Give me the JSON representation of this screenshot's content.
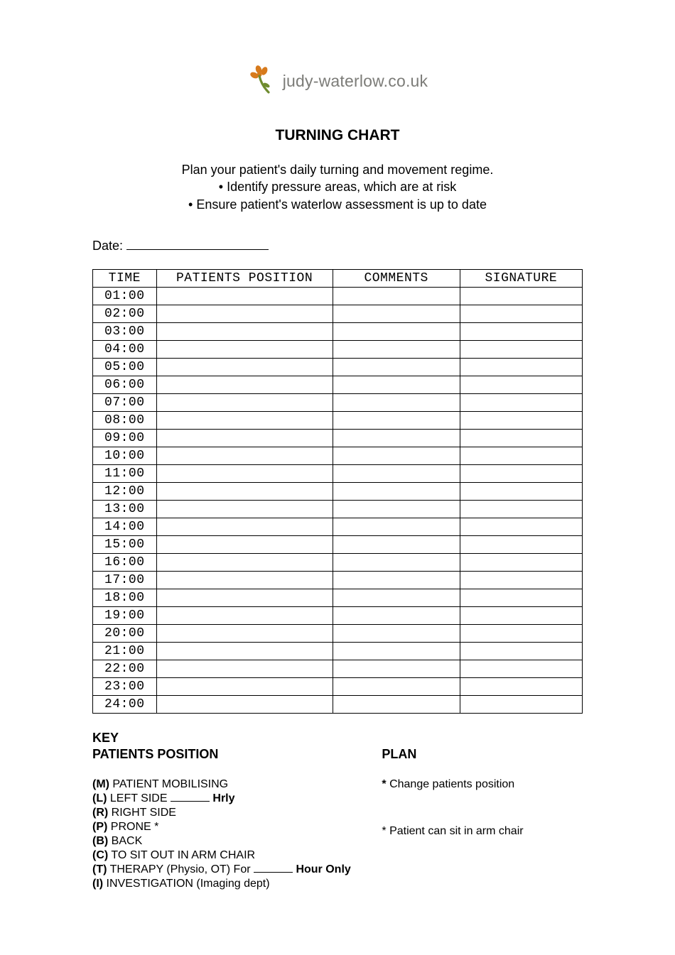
{
  "logo": {
    "text": "judy-waterlow.co.uk",
    "petal_color": "#d77a1c",
    "stem_color": "#6f8c2f",
    "text_color": "#7c7c78"
  },
  "title": "TURNING CHART",
  "intro": {
    "line1": "Plan your patient's daily turning and movement regime.",
    "bullet1": "• Identify pressure areas, which are at risk",
    "bullet2": "• Ensure patient's waterlow assessment is up to date"
  },
  "date_label": "Date: ",
  "table": {
    "columns": [
      "TIME",
      "PATIENTS POSITION",
      "COMMENTS",
      "SIGNATURE"
    ],
    "col_widths_pct": [
      13,
      36,
      26,
      25
    ],
    "border_color": "#000000",
    "font_family": "Courier New",
    "header_fontsize": 18,
    "cell_fontsize": 18,
    "rows": [
      {
        "time": "01:00",
        "pos": "",
        "com": "",
        "sig": ""
      },
      {
        "time": "02:00",
        "pos": "",
        "com": "",
        "sig": ""
      },
      {
        "time": "03:00",
        "pos": "",
        "com": "",
        "sig": ""
      },
      {
        "time": "04:00",
        "pos": "",
        "com": "",
        "sig": ""
      },
      {
        "time": "05:00",
        "pos": "",
        "com": "",
        "sig": ""
      },
      {
        "time": "06:00",
        "pos": "",
        "com": "",
        "sig": ""
      },
      {
        "time": "07:00",
        "pos": "",
        "com": "",
        "sig": ""
      },
      {
        "time": "08:00",
        "pos": "",
        "com": "",
        "sig": ""
      },
      {
        "time": "09:00",
        "pos": "",
        "com": "",
        "sig": ""
      },
      {
        "time": "10:00",
        "pos": "",
        "com": "",
        "sig": ""
      },
      {
        "time": "11:00",
        "pos": "",
        "com": "",
        "sig": ""
      },
      {
        "time": "12:00",
        "pos": "",
        "com": "",
        "sig": ""
      },
      {
        "time": "13:00",
        "pos": "",
        "com": "",
        "sig": ""
      },
      {
        "time": "14:00",
        "pos": "",
        "com": "",
        "sig": ""
      },
      {
        "time": "15:00",
        "pos": "",
        "com": "",
        "sig": ""
      },
      {
        "time": "16:00",
        "pos": "",
        "com": "",
        "sig": ""
      },
      {
        "time": "17:00",
        "pos": "",
        "com": "",
        "sig": ""
      },
      {
        "time": "18:00",
        "pos": "",
        "com": "",
        "sig": ""
      },
      {
        "time": "19:00",
        "pos": "",
        "com": "",
        "sig": ""
      },
      {
        "time": "20:00",
        "pos": "",
        "com": "",
        "sig": ""
      },
      {
        "time": "21:00",
        "pos": "",
        "com": "",
        "sig": ""
      },
      {
        "time": "22:00",
        "pos": "",
        "com": "",
        "sig": ""
      },
      {
        "time": "23:00",
        "pos": "",
        "com": "",
        "sig": ""
      },
      {
        "time": "24:00",
        "pos": "",
        "com": "",
        "sig": ""
      }
    ]
  },
  "key": {
    "heading": "KEY",
    "left_title": "PATIENTS POSITION",
    "right_title": "PLAN",
    "items": [
      {
        "code": "(M)",
        "text": " PATIENT MOBILISING"
      },
      {
        "code": "(L)",
        "text": " LEFT SIDE ",
        "fill": true,
        "suffix": " Hrly",
        "suffix_bold": true
      },
      {
        "code": "(R)",
        "text": " RIGHT SIDE"
      },
      {
        "code": "(P)",
        "text": " PRONE *"
      },
      {
        "code": "(B)",
        "text": " BACK"
      },
      {
        "code": "(C)",
        "text": " TO SIT OUT IN ARM CHAIR"
      },
      {
        "code": "(T)",
        "text": " THERAPY (Physio, OT) For ",
        "fill": true,
        "suffix": " Hour Only",
        "suffix_bold": true
      },
      {
        "code": "(I)",
        "text": " INVESTIGATION (Imaging dept)"
      }
    ],
    "plan": [
      {
        "bold": "* ",
        "text": "Change patients position"
      },
      {
        "text": "* Patient can sit in arm chair"
      }
    ]
  },
  "colors": {
    "page_bg": "#ffffff",
    "text": "#000000"
  }
}
